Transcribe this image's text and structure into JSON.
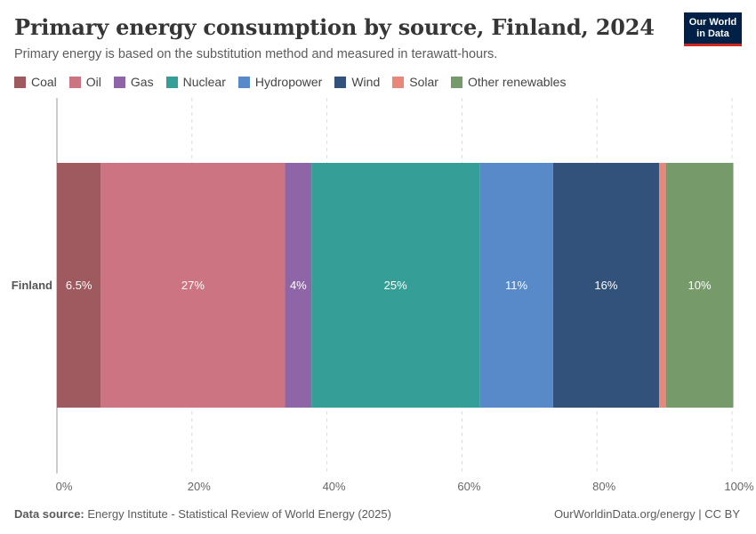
{
  "header": {
    "title": "Primary energy consumption by source, Finland, 2024",
    "subtitle": "Primary energy is based on the substitution method and measured in terawatt-hours."
  },
  "logo": {
    "line1": "Our World",
    "line2": "in Data"
  },
  "footer": {
    "source_label": "Data source:",
    "source_text": "Energy Institute - Statistical Review of World Energy (2025)",
    "url_license": "OurWorldinData.org/energy | CC BY"
  },
  "chart_data": {
    "type": "bar",
    "orientation": "horizontal",
    "stacked": "percent",
    "title": "Primary energy consumption by source, Finland, 2024",
    "categories": [
      "Finland"
    ],
    "xlim": [
      0,
      100
    ],
    "xticks": [
      "0%",
      "20%",
      "40%",
      "60%",
      "80%",
      "100%"
    ],
    "grid": true,
    "legend_position": "top",
    "series": [
      {
        "name": "Coal",
        "value": 6.5,
        "label": "6.5%",
        "color": "#9e5a5f"
      },
      {
        "name": "Oil",
        "value": 27.3,
        "label": "27%",
        "color": "#cd7482"
      },
      {
        "name": "Gas",
        "value": 3.9,
        "label": "4%",
        "color": "#8e66a8"
      },
      {
        "name": "Nuclear",
        "value": 24.9,
        "label": "25%",
        "color": "#359e97"
      },
      {
        "name": "Hydropower",
        "value": 10.9,
        "label": "11%",
        "color": "#5889c9"
      },
      {
        "name": "Wind",
        "value": 15.7,
        "label": "16%",
        "color": "#33527b"
      },
      {
        "name": "Solar",
        "value": 1.0,
        "label": "",
        "color": "#e9887a"
      },
      {
        "name": "Other renewables",
        "value": 10.0,
        "label": "10%",
        "color": "#769a69"
      }
    ]
  }
}
